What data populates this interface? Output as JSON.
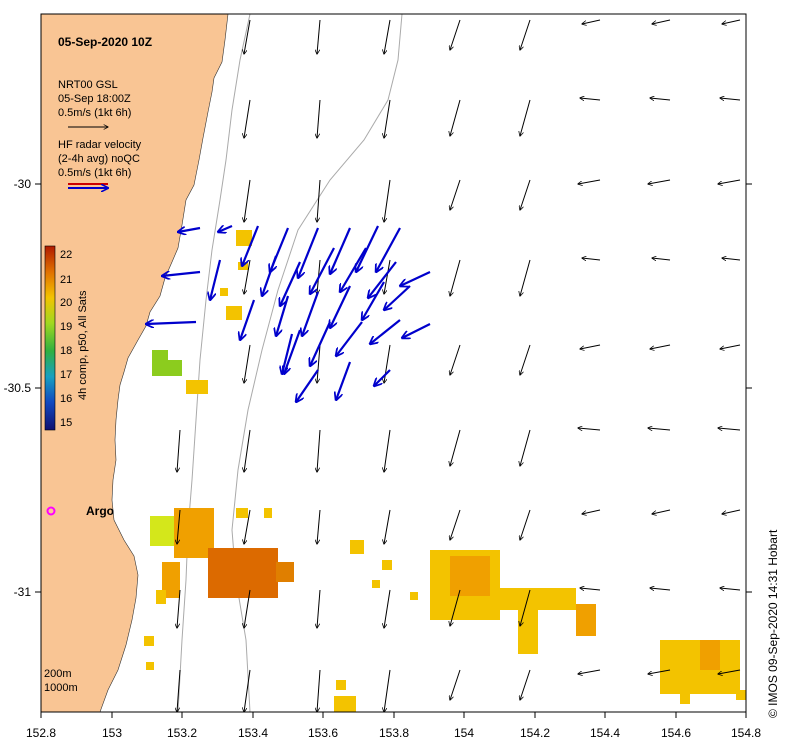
{
  "title": "05-Sep-2020 10Z",
  "model_legend": {
    "line1": "NRT00 GSL",
    "line2": "05-Sep 18:00Z",
    "line3": "0.5m/s (1kt 6h)"
  },
  "radar_legend": {
    "line1": "HF radar velocity",
    "line2": "(2-4h avg) noQC",
    "line3": "0.5m/s (1kt 6h)"
  },
  "colorbar": {
    "label": "4h comp, p50, All Sats",
    "ticks": [
      "22",
      "21",
      "20",
      "19",
      "18",
      "17",
      "16",
      "15"
    ]
  },
  "x_ticks": [
    "152.8",
    "153",
    "153.2",
    "153.4",
    "153.6",
    "153.8",
    "154",
    "154.2",
    "154.4",
    "154.6",
    "154.8"
  ],
  "y_ticks": [
    "-30",
    "-30.5",
    "-31"
  ],
  "depth_legend": {
    "line1": "200m",
    "line2": "1000m"
  },
  "argo_label": "Argo",
  "credit": "© IMOS 09-Sep-2020 14:31 Hobart",
  "colors": {
    "land": "#f9c594",
    "radar": "#0000cc",
    "model": "#000000",
    "argo": "#ff00ff"
  }
}
